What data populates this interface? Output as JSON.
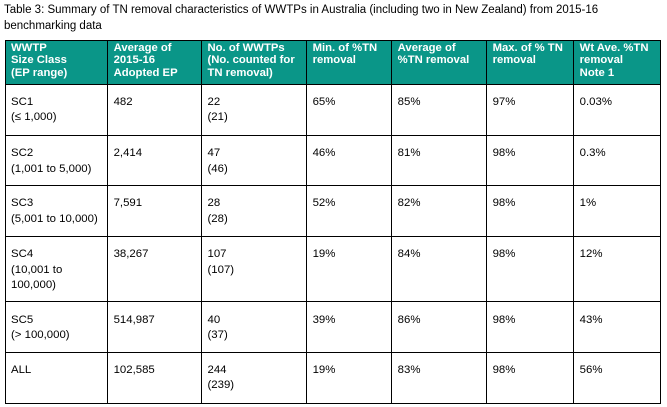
{
  "caption": {
    "line1": "Table 3: Summary of TN removal characteristics of WWTPs in Australia (including two in New Zealand) from 2015-16",
    "line2": "benchmarking data"
  },
  "colors": {
    "header_bg": "#0a9688",
    "header_text": "#ffffff",
    "body_text": "#000000",
    "border": "#000000",
    "page_bg": "#ffffff"
  },
  "table": {
    "columns": [
      {
        "id": "size-class",
        "lines": [
          "WWTP",
          "Size Class",
          "(EP range)"
        ]
      },
      {
        "id": "avg-adopted-ep",
        "lines": [
          "Average of",
          "2015-16",
          "Adopted EP"
        ]
      },
      {
        "id": "num-wwtps",
        "lines": [
          "No. of WWTPs",
          "(No. counted for",
          "TN removal)"
        ]
      },
      {
        "id": "min-tn-removal",
        "lines": [
          "Min. of %TN",
          "removal"
        ]
      },
      {
        "id": "avg-tn-removal",
        "lines": [
          "Average of",
          "%TN removal"
        ]
      },
      {
        "id": "max-tn-removal",
        "lines": [
          "Max. of % TN",
          "removal"
        ]
      },
      {
        "id": "wt-ave-tn-removal",
        "lines": [
          "Wt Ave. %TN",
          "removal",
          "Note 1"
        ]
      }
    ],
    "rows": [
      {
        "cells": [
          [
            "SC1",
            "(≤ 1,000)"
          ],
          [
            "482"
          ],
          [
            "22",
            "(21)"
          ],
          [
            "65%"
          ],
          [
            "85%"
          ],
          [
            "97%"
          ],
          [
            "0.03%"
          ]
        ]
      },
      {
        "cells": [
          [
            "SC2",
            "(1,001 to 5,000)"
          ],
          [
            "2,414"
          ],
          [
            "47",
            "(46)"
          ],
          [
            "46%"
          ],
          [
            "81%"
          ],
          [
            "98%"
          ],
          [
            "0.3%"
          ]
        ]
      },
      {
        "cells": [
          [
            "SC3",
            "(5,001 to 10,000)"
          ],
          [
            "7,591"
          ],
          [
            "28",
            "(28)"
          ],
          [
            "52%"
          ],
          [
            "82%"
          ],
          [
            "98%"
          ],
          [
            "1%"
          ]
        ]
      },
      {
        "cells": [
          [
            "SC4",
            "(10,001 to",
            "100,000)"
          ],
          [
            "38,267"
          ],
          [
            "107",
            "(107)"
          ],
          [
            "19%"
          ],
          [
            "84%"
          ],
          [
            "98%"
          ],
          [
            "12%"
          ]
        ]
      },
      {
        "cells": [
          [
            "SC5",
            "(> 100,000)"
          ],
          [
            "514,987"
          ],
          [
            "40",
            "(37)"
          ],
          [
            "39%"
          ],
          [
            "86%"
          ],
          [
            "98%"
          ],
          [
            "43%"
          ]
        ]
      },
      {
        "cells": [
          [
            "ALL"
          ],
          [
            "102,585"
          ],
          [
            "244",
            "(239)"
          ],
          [
            "19%"
          ],
          [
            "83%"
          ],
          [
            "98%"
          ],
          [
            "56%"
          ]
        ]
      }
    ]
  }
}
